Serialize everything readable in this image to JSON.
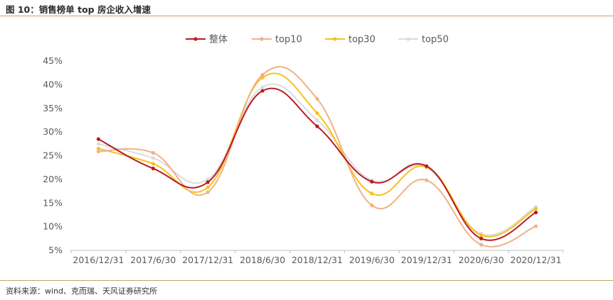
{
  "figure_title": "图 10：销售榜单 top 房企收入增速",
  "source_note": "资料来源：wind、克而瑞、天风证券研究所",
  "chart_data": {
    "type": "line",
    "categories": [
      "2016/12/31",
      "2017/6/30",
      "2017/12/31",
      "2018/6/30",
      "2018/12/31",
      "2019/6/30",
      "2019/12/31",
      "2020/6/30",
      "2020/12/31"
    ],
    "ylim": [
      5,
      45
    ],
    "yticks": [
      5,
      10,
      15,
      20,
      25,
      30,
      35,
      40,
      45
    ],
    "ytick_labels": [
      "5%",
      "10%",
      "15%",
      "20%",
      "25%",
      "30%",
      "35%",
      "40%",
      "45%"
    ],
    "grid": false,
    "legend_position": "top",
    "series": [
      {
        "name": "整体",
        "color": "#b81c22",
        "values": [
          28.5,
          22.3,
          19.4,
          38.7,
          31.2,
          19.5,
          22.8,
          7.5,
          13.0
        ]
      },
      {
        "name": "top10",
        "color": "#f2b186",
        "values": [
          25.9,
          25.6,
          17.3,
          42.1,
          37.0,
          14.5,
          19.8,
          6.2,
          10.1
        ]
      },
      {
        "name": "top30",
        "color": "#f7c11b",
        "values": [
          26.5,
          23.3,
          18.3,
          41.5,
          34.0,
          17.0,
          22.6,
          8.2,
          13.8
        ]
      },
      {
        "name": "top50",
        "color": "#dcdcdc",
        "values": [
          27.5,
          24.5,
          20.0,
          39.5,
          32.5,
          19.8,
          22.5,
          8.5,
          14.2
        ]
      }
    ]
  }
}
